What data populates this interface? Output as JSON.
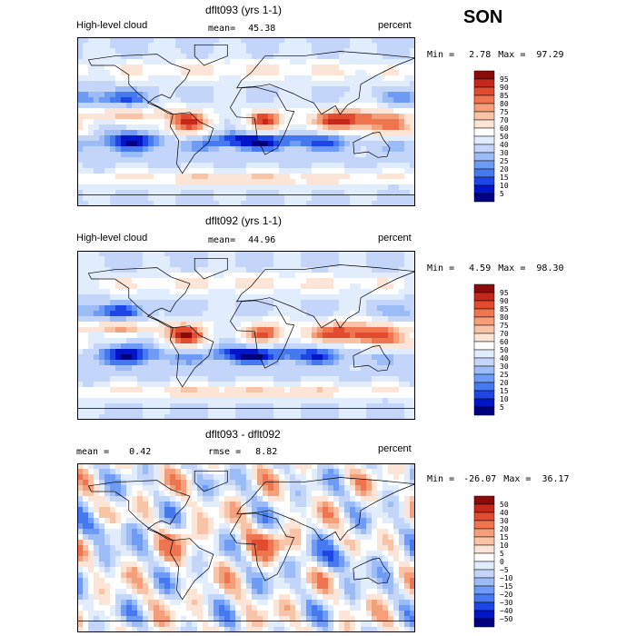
{
  "season": "SON",
  "panels": [
    {
      "title": "dflt093 (yrs 1-1)",
      "left_label": "High-level cloud",
      "mean_label": "mean=",
      "mean_value": "45.38",
      "rmse_label": "",
      "rmse_value": "",
      "units": "percent",
      "min_label": "Min =",
      "min_value": "2.78",
      "max_label": "Max =",
      "max_value": "97.29",
      "scale": "abs",
      "colorbar_labels": [
        "95",
        "90",
        "85",
        "80",
        "75",
        "70",
        "60",
        "50",
        "40",
        "30",
        "25",
        "20",
        "15",
        "10",
        "5"
      ]
    },
    {
      "title": "dflt092 (yrs 1-1)",
      "left_label": "High-level cloud",
      "mean_label": "mean=",
      "mean_value": "44.96",
      "rmse_label": "",
      "rmse_value": "",
      "units": "percent",
      "min_label": "Min =",
      "min_value": "4.59",
      "max_label": "Max =",
      "max_value": "98.30",
      "scale": "abs",
      "colorbar_labels": [
        "95",
        "90",
        "85",
        "80",
        "75",
        "70",
        "60",
        "50",
        "40",
        "30",
        "25",
        "20",
        "15",
        "10",
        "5"
      ]
    },
    {
      "title": "dflt093 - dflt092",
      "left_label": "",
      "mean_label": "mean =",
      "mean_value": "0.42",
      "rmse_label": "rmse =",
      "rmse_value": "8.82",
      "units": "percent",
      "min_label": "Min =",
      "min_value": "-26.07",
      "max_label": "Max =",
      "max_value": "36.17",
      "scale": "diff",
      "colorbar_labels": [
        "50",
        "40",
        "30",
        "20",
        "15",
        "10",
        "5",
        "0",
        "−5",
        "−10",
        "−15",
        "−20",
        "−30",
        "−40",
        "−50"
      ]
    }
  ],
  "colors": {
    "palette": [
      "#000080",
      "#0014c8",
      "#1e46e6",
      "#4678f0",
      "#6e9bf5",
      "#9bbcf7",
      "#c3d6fa",
      "#e1ecfc",
      "#ffffff",
      "#fce4d6",
      "#f9c3a7",
      "#f59e7a",
      "#ee7550",
      "#e14b30",
      "#c4281a",
      "#8b0a0a"
    ],
    "coastline": "#000000"
  }
}
